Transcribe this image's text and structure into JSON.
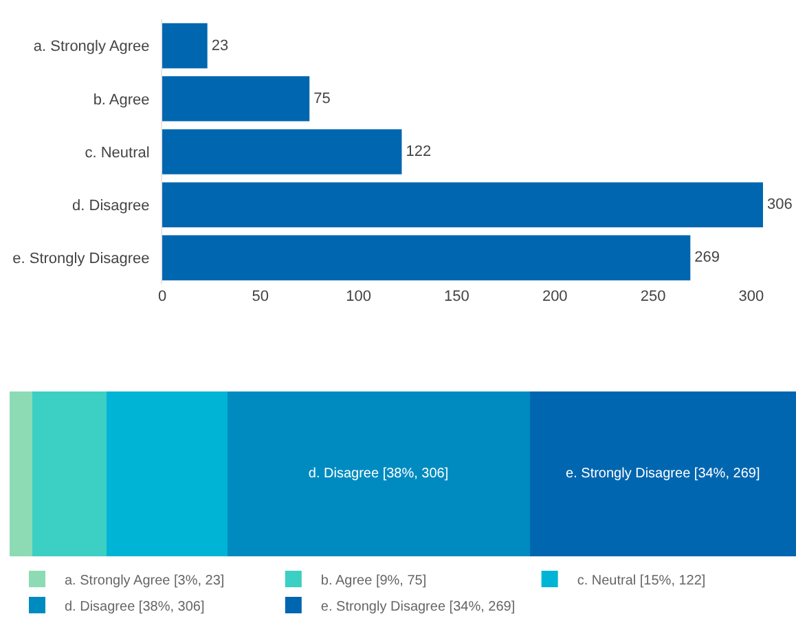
{
  "chart_data": [
    {
      "type": "bar",
      "orientation": "horizontal",
      "categories": [
        "a. Strongly Agree",
        "b. Agree",
        "c. Neutral",
        "d. Disagree",
        "e. Strongly Disagree"
      ],
      "values": [
        23,
        75,
        122,
        306,
        269
      ],
      "color": "#0066b0",
      "xlim": [
        0,
        306
      ],
      "xticks": [
        0,
        50,
        100,
        150,
        200,
        250,
        300
      ],
      "data_labels": true,
      "grid": false,
      "legend": false
    },
    {
      "type": "bar",
      "orientation": "horizontal",
      "stacked": true,
      "categories": [
        null
      ],
      "legend": "bottom",
      "series": [
        {
          "name": "a. Strongly Agree [3%, 23]",
          "color": "#8ddbb4",
          "values": [
            23
          ],
          "value_labels": [
            null
          ]
        },
        {
          "name": "b. Agree [9%, 75]",
          "color": "#3ccfc4",
          "values": [
            75
          ],
          "value_labels": [
            null
          ]
        },
        {
          "name": "c. Neutral [15%, 122]",
          "color": "#00b4d5",
          "values": [
            122
          ],
          "value_labels": [
            null
          ]
        },
        {
          "name": "d. Disagree [38%, 306]",
          "color": "#008bc0",
          "values": [
            306
          ],
          "value_labels": [
            "d. Disagree [38%, 306]"
          ]
        },
        {
          "name": "e. Strongly Disagree [34%, 269]",
          "color": "#0066b0",
          "values": [
            269
          ],
          "value_labels": [
            "e. Strongly Disagree [34%, 269]"
          ]
        }
      ]
    }
  ]
}
